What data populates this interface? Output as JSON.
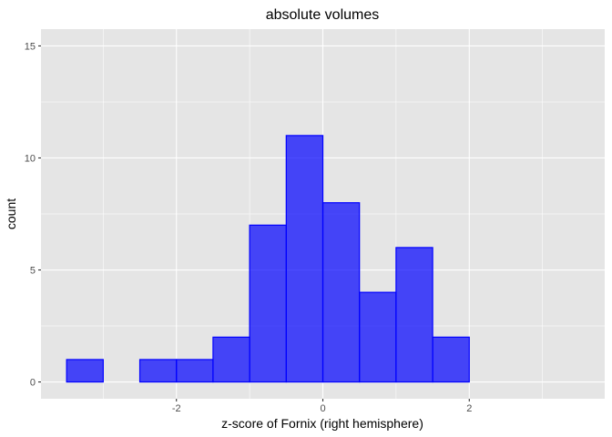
{
  "chart_data": {
    "type": "bar",
    "title": "absolute volumes",
    "xlabel": "z-score of Fornix (right hemisphere)",
    "ylabel": "count",
    "xlim": [
      -3.85,
      3.85
    ],
    "ylim": [
      -0.75,
      15.75
    ],
    "x_ticks": [
      -2,
      0,
      2
    ],
    "x_tick_labels": [
      "-2",
      "0",
      "2"
    ],
    "y_ticks": [
      0,
      5,
      10,
      15
    ],
    "y_tick_labels": [
      "0",
      "5",
      "10",
      "15"
    ],
    "bin_width": 0.5,
    "bins": [
      {
        "start": -3.5,
        "end": -3.0,
        "count": 1
      },
      {
        "start": -3.0,
        "end": -2.5,
        "count": 0
      },
      {
        "start": -2.5,
        "end": -2.0,
        "count": 1
      },
      {
        "start": -2.0,
        "end": -1.5,
        "count": 1
      },
      {
        "start": -1.5,
        "end": -1.0,
        "count": 2
      },
      {
        "start": -1.0,
        "end": -0.5,
        "count": 7
      },
      {
        "start": -0.5,
        "end": 0.0,
        "count": 11
      },
      {
        "start": 0.0,
        "end": 0.5,
        "count": 8
      },
      {
        "start": 0.5,
        "end": 1.0,
        "count": 4
      },
      {
        "start": 1.0,
        "end": 1.5,
        "count": 6
      },
      {
        "start": 1.5,
        "end": 2.0,
        "count": 2
      },
      {
        "start": 2.0,
        "end": 2.5,
        "count": 0
      },
      {
        "start": 2.5,
        "end": 3.0,
        "count": 0
      },
      {
        "start": 3.0,
        "end": 3.5,
        "count": 0
      }
    ],
    "bar_fill": "#0000ff",
    "bar_fill_opacity": 0.7,
    "bar_outline": "#0000ff",
    "panel_background": "#e5e5e5",
    "grid_color": "#ffffff",
    "grid": true,
    "legend": "none"
  }
}
